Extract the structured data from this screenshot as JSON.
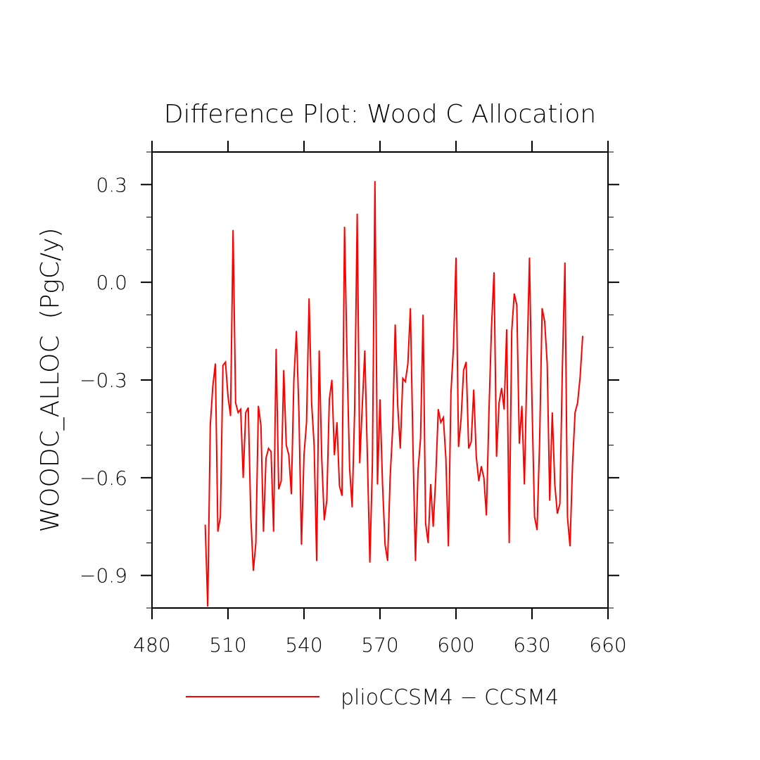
{
  "chart_data": {
    "type": "line",
    "title": "Difference Plot: Wood C Allocation",
    "ylabel": "WOODC_ALLOC  (PgC/y)",
    "xlabel": "",
    "xlim": [
      480,
      660
    ],
    "ylim": [
      -1.0,
      0.4
    ],
    "x_ticks": [
      480,
      510,
      540,
      570,
      600,
      630,
      660
    ],
    "y_ticks": [
      -0.9,
      -0.6,
      -0.3,
      0.0,
      0.3
    ],
    "y_tick_labels": [
      "−0.9",
      "−0.6",
      "−0.3",
      "0.0",
      "0.3"
    ],
    "legend_position": "bottom-center",
    "grid": false,
    "series": [
      {
        "name": "plioCCSM4 − CCSM4",
        "color": "#ff0000",
        "x_start": 501,
        "x_step": 1,
        "values": [
          -0.745,
          -0.995,
          -0.44,
          -0.32,
          -0.25,
          -0.765,
          -0.72,
          -0.255,
          -0.245,
          -0.35,
          -0.41,
          0.16,
          -0.37,
          -0.4,
          -0.39,
          -0.6,
          -0.4,
          -0.385,
          -0.72,
          -0.885,
          -0.8,
          -0.38,
          -0.44,
          -0.765,
          -0.54,
          -0.51,
          -0.52,
          -0.765,
          -0.205,
          -0.635,
          -0.61,
          -0.27,
          -0.5,
          -0.53,
          -0.65,
          -0.3,
          -0.15,
          -0.4,
          -0.805,
          -0.53,
          -0.43,
          -0.05,
          -0.37,
          -0.5,
          -0.855,
          -0.21,
          -0.54,
          -0.73,
          -0.67,
          -0.36,
          -0.3,
          -0.53,
          -0.43,
          -0.625,
          -0.655,
          0.17,
          -0.24,
          -0.57,
          -0.69,
          -0.39,
          0.21,
          -0.555,
          -0.38,
          -0.21,
          -0.53,
          -0.86,
          -0.56,
          0.31,
          -0.62,
          -0.36,
          -0.62,
          -0.805,
          -0.855,
          -0.6,
          -0.45,
          -0.13,
          -0.38,
          -0.51,
          -0.295,
          -0.305,
          -0.25,
          -0.08,
          -0.5,
          -0.855,
          -0.58,
          -0.48,
          -0.1,
          -0.74,
          -0.8,
          -0.62,
          -0.75,
          -0.6,
          -0.39,
          -0.43,
          -0.415,
          -0.54,
          -0.81,
          -0.34,
          -0.2,
          0.075,
          -0.505,
          -0.42,
          -0.27,
          -0.245,
          -0.51,
          -0.49,
          -0.33,
          -0.535,
          -0.61,
          -0.565,
          -0.6,
          -0.715,
          -0.4,
          -0.14,
          0.03,
          -0.535,
          -0.37,
          -0.325,
          -0.39,
          -0.145,
          -0.8,
          -0.15,
          -0.035,
          -0.07,
          -0.495,
          -0.38,
          -0.62,
          -0.26,
          0.075,
          -0.37,
          -0.72,
          -0.76,
          -0.49,
          -0.08,
          -0.12,
          -0.25,
          -0.67,
          -0.4,
          -0.62,
          -0.71,
          -0.68,
          -0.26,
          0.06,
          -0.72,
          -0.81,
          -0.56,
          -0.4,
          -0.37,
          -0.29,
          -0.165
        ]
      }
    ]
  }
}
